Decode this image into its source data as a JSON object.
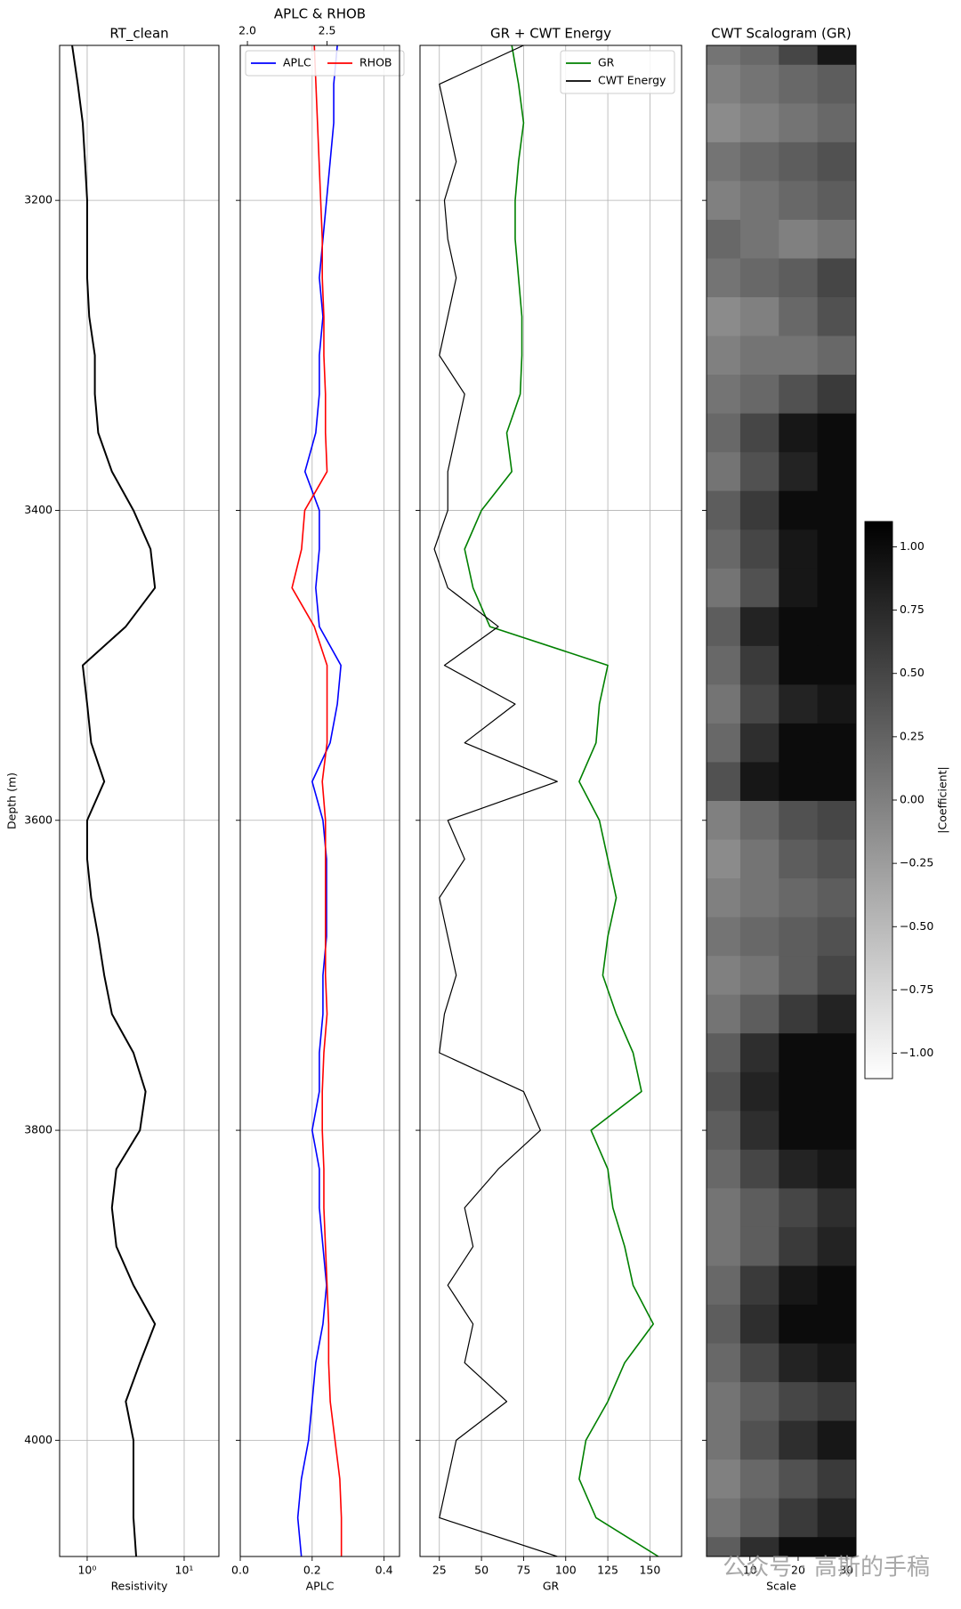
{
  "chart_data": [
    {
      "type": "line",
      "title": "RT_clean",
      "xlabel": "Resistivity",
      "ylabel": "Depth (m)",
      "xscale": "log",
      "xlim": [
        0.52,
        22.8
      ],
      "xticks": [
        {
          "value": 1,
          "label": "10⁰"
        },
        {
          "value": 10,
          "label": "10¹"
        }
      ],
      "ylim": [
        3100,
        4075
      ],
      "yinvert": true,
      "yticks": [
        3200,
        3400,
        3600,
        3800,
        4000
      ],
      "grid": true,
      "y": [
        3100,
        3125,
        3150,
        3175,
        3200,
        3225,
        3250,
        3275,
        3300,
        3325,
        3350,
        3375,
        3400,
        3425,
        3450,
        3475,
        3500,
        3525,
        3550,
        3575,
        3600,
        3625,
        3650,
        3675,
        3700,
        3725,
        3750,
        3775,
        3800,
        3825,
        3850,
        3875,
        3900,
        3925,
        3950,
        3975,
        4000,
        4025,
        4050,
        4075
      ],
      "series": [
        {
          "color": "#000000",
          "width": 2,
          "values": [
            0.7,
            0.8,
            0.9,
            0.95,
            1.0,
            1.0,
            1.0,
            1.05,
            1.2,
            1.2,
            1.3,
            1.8,
            3.0,
            4.5,
            5.0,
            2.5,
            0.9,
            1.0,
            1.1,
            1.5,
            1.0,
            1.0,
            1.1,
            1.3,
            1.5,
            1.8,
            3.0,
            4.0,
            3.5,
            2.0,
            1.8,
            2.0,
            3.0,
            5.0,
            3.5,
            2.5,
            3.0,
            3.0,
            3.0,
            3.2
          ]
        }
      ]
    },
    {
      "type": "line",
      "title": "APLC & RHOB",
      "xlabel": "APLC",
      "xlim": [
        0,
        0.443
      ],
      "xticks": [
        {
          "value": 0,
          "label": "0.0"
        },
        {
          "value": 0.2,
          "label": "0.2"
        },
        {
          "value": 0.4,
          "label": "0.4"
        }
      ],
      "x2lim": [
        1.955,
        2.955
      ],
      "x2ticks": [
        {
          "value": 2,
          "label": "2.0"
        },
        2.5
      ],
      "ylim": [
        3100,
        4075
      ],
      "yinvert": true,
      "yticks": [
        3200,
        3400,
        3600,
        3800,
        4000
      ],
      "grid": true,
      "legend": "upper left",
      "legend_ncol": 2,
      "y": [
        3100,
        3125,
        3150,
        3175,
        3200,
        3225,
        3250,
        3275,
        3300,
        3325,
        3350,
        3375,
        3400,
        3425,
        3450,
        3475,
        3500,
        3525,
        3550,
        3575,
        3600,
        3625,
        3650,
        3675,
        3700,
        3725,
        3750,
        3775,
        3800,
        3825,
        3850,
        3875,
        3900,
        3925,
        3950,
        3975,
        4000,
        4025,
        4050,
        4075
      ],
      "series": [
        {
          "name": "APLC",
          "color": "#0000ff",
          "width": 1.6,
          "values": [
            0.27,
            0.26,
            0.26,
            0.25,
            0.24,
            0.23,
            0.22,
            0.23,
            0.22,
            0.22,
            0.21,
            0.18,
            0.22,
            0.22,
            0.21,
            0.22,
            0.28,
            0.27,
            0.25,
            0.2,
            0.23,
            0.24,
            0.24,
            0.24,
            0.23,
            0.23,
            0.22,
            0.22,
            0.2,
            0.22,
            0.22,
            0.23,
            0.24,
            0.23,
            0.21,
            0.2,
            0.19,
            0.17,
            0.16,
            0.17
          ]
        },
        {
          "name": "RHOB",
          "color": "#ff0000",
          "width": 1.6,
          "axis": "x2",
          "values": [
            2.42,
            2.43,
            2.44,
            2.45,
            2.46,
            2.47,
            2.47,
            2.48,
            2.48,
            2.49,
            2.49,
            2.5,
            2.36,
            2.34,
            2.28,
            2.42,
            2.5,
            2.5,
            2.5,
            2.47,
            2.49,
            2.49,
            2.49,
            2.49,
            2.49,
            2.5,
            2.48,
            2.47,
            2.47,
            2.48,
            2.48,
            2.49,
            2.5,
            2.51,
            2.51,
            2.52,
            2.55,
            2.58,
            2.59,
            2.59
          ]
        }
      ]
    },
    {
      "type": "line",
      "title": "GR + CWT Energy",
      "xlabel": "GR",
      "xlim": [
        13.5,
        168.8
      ],
      "xticks": [
        25,
        50,
        75,
        100,
        125,
        150
      ],
      "ylim": [
        3100,
        4075
      ],
      "yinvert": true,
      "yticks": [
        3200,
        3400,
        3600,
        3800,
        4000
      ],
      "grid": true,
      "legend": "upper right",
      "legend_ncol": 1,
      "y": [
        3100,
        3125,
        3150,
        3175,
        3200,
        3225,
        3250,
        3275,
        3300,
        3325,
        3350,
        3375,
        3400,
        3425,
        3450,
        3475,
        3500,
        3525,
        3550,
        3575,
        3600,
        3625,
        3650,
        3675,
        3700,
        3725,
        3750,
        3775,
        3800,
        3825,
        3850,
        3875,
        3900,
        3925,
        3950,
        3975,
        4000,
        4025,
        4050,
        4075
      ],
      "series": [
        {
          "name": "GR",
          "color": "#008000",
          "width": 1.6,
          "values": [
            68,
            72,
            75,
            72,
            70,
            70,
            72,
            74,
            74,
            73,
            65,
            68,
            50,
            40,
            45,
            55,
            125,
            120,
            118,
            108,
            120,
            125,
            130,
            125,
            122,
            130,
            140,
            145,
            115,
            125,
            128,
            135,
            140,
            152,
            135,
            125,
            112,
            108,
            118,
            155
          ]
        },
        {
          "name": "CWT Energy",
          "color": "#000000",
          "width": 1.2,
          "values": [
            75,
            25,
            30,
            35,
            28,
            30,
            35,
            30,
            25,
            40,
            35,
            30,
            30,
            22,
            30,
            60,
            28,
            70,
            40,
            95,
            30,
            40,
            25,
            30,
            35,
            28,
            25,
            75,
            85,
            60,
            40,
            45,
            30,
            45,
            40,
            65,
            35,
            30,
            25,
            95
          ]
        }
      ]
    },
    {
      "type": "heatmap",
      "title": "CWT Scalogram (GR)",
      "xlabel": "Scale",
      "xlim": [
        1,
        32
      ],
      "xticks": [
        10,
        20,
        30
      ],
      "x": [
        4,
        12,
        20,
        28
      ],
      "ylim": [
        3100,
        4075
      ],
      "yinvert": true,
      "yticks": [
        3200,
        3400,
        3600,
        3800,
        4000
      ],
      "grid": false,
      "y": [
        3100,
        3125,
        3150,
        3175,
        3200,
        3225,
        3250,
        3275,
        3300,
        3325,
        3350,
        3375,
        3400,
        3425,
        3450,
        3475,
        3500,
        3525,
        3550,
        3575,
        3600,
        3625,
        3650,
        3675,
        3700,
        3725,
        3750,
        3775,
        3800,
        3825,
        3850,
        3875,
        3900,
        3925,
        3950,
        3975,
        4000,
        4025,
        4050,
        4075
      ],
      "z": [
        [
          0.1,
          0.2,
          0.5,
          0.9
        ],
        [
          0.0,
          0.1,
          0.2,
          0.3
        ],
        [
          -0.1,
          0.0,
          0.1,
          0.2
        ],
        [
          0.1,
          0.2,
          0.3,
          0.4
        ],
        [
          0.0,
          0.1,
          0.2,
          0.3
        ],
        [
          0.2,
          0.1,
          0.0,
          0.1
        ],
        [
          0.1,
          0.2,
          0.3,
          0.5
        ],
        [
          -0.1,
          0.0,
          0.2,
          0.4
        ],
        [
          0.0,
          0.1,
          0.1,
          0.2
        ],
        [
          0.1,
          0.2,
          0.4,
          0.6
        ],
        [
          0.2,
          0.5,
          0.9,
          1.0
        ],
        [
          0.1,
          0.4,
          0.8,
          1.0
        ],
        [
          0.3,
          0.6,
          1.0,
          1.0
        ],
        [
          0.2,
          0.5,
          0.9,
          1.0
        ],
        [
          0.1,
          0.4,
          0.9,
          1.0
        ],
        [
          0.3,
          0.8,
          1.0,
          1.0
        ],
        [
          0.2,
          0.6,
          1.0,
          1.0
        ],
        [
          0.1,
          0.5,
          0.8,
          0.9
        ],
        [
          0.2,
          0.7,
          1.0,
          1.0
        ],
        [
          0.4,
          0.9,
          1.0,
          1.0
        ],
        [
          0.0,
          0.2,
          0.4,
          0.5
        ],
        [
          -0.1,
          0.1,
          0.3,
          0.4
        ],
        [
          0.0,
          0.1,
          0.2,
          0.3
        ],
        [
          0.1,
          0.2,
          0.3,
          0.4
        ],
        [
          0.0,
          0.1,
          0.3,
          0.5
        ],
        [
          0.1,
          0.3,
          0.6,
          0.8
        ],
        [
          0.3,
          0.7,
          1.0,
          1.0
        ],
        [
          0.4,
          0.8,
          1.0,
          1.0
        ],
        [
          0.3,
          0.7,
          1.0,
          1.0
        ],
        [
          0.2,
          0.5,
          0.8,
          0.9
        ],
        [
          0.1,
          0.3,
          0.5,
          0.7
        ],
        [
          0.1,
          0.3,
          0.6,
          0.8
        ],
        [
          0.2,
          0.6,
          0.9,
          1.0
        ],
        [
          0.3,
          0.7,
          1.0,
          1.0
        ],
        [
          0.2,
          0.5,
          0.8,
          0.9
        ],
        [
          0.1,
          0.3,
          0.5,
          0.6
        ],
        [
          0.1,
          0.4,
          0.7,
          0.9
        ],
        [
          0.0,
          0.2,
          0.4,
          0.6
        ],
        [
          0.1,
          0.3,
          0.6,
          0.8
        ],
        [
          0.3,
          0.7,
          1.0,
          1.0
        ]
      ],
      "colorbar": {
        "label": "|Coefficient|",
        "clim": [
          -1.1,
          1.1
        ],
        "ticks": [
          {
            "value": 1,
            "label": "1.00"
          },
          {
            "value": 0.75,
            "label": "0.75"
          },
          {
            "value": 0.5,
            "label": "0.50"
          },
          {
            "value": 0.25,
            "label": "0.25"
          },
          {
            "value": 0,
            "label": "0.00"
          },
          {
            "value": -0.25,
            "label": "−0.25"
          },
          {
            "value": -0.5,
            "label": "−0.50"
          },
          {
            "value": -0.75,
            "label": "−0.75"
          },
          {
            "value": -1,
            "label": "−1.00"
          }
        ]
      }
    }
  ],
  "watermark": "公众号 · 高斯的手稿"
}
